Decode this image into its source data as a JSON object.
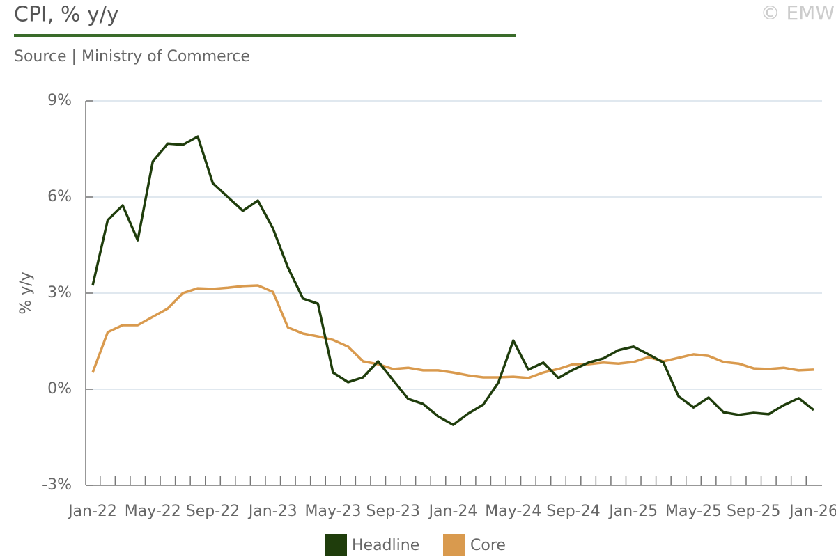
{
  "chart_data": {
    "type": "line",
    "title": "CPI, % y/y",
    "subtitle": "Source | Ministry of Commerce",
    "watermark": "© EMW",
    "ylabel": "% y/y",
    "categories": [
      "Jan-22",
      null,
      null,
      null,
      "May-22",
      null,
      null,
      null,
      "Sep-22",
      null,
      null,
      null,
      "Jan-23",
      null,
      null,
      null,
      "May-23",
      null,
      null,
      null,
      "Sep-23",
      null,
      null,
      null,
      "Jan-24",
      null,
      null,
      null,
      "May-24",
      null,
      null,
      null,
      "Sep-24",
      null,
      null,
      null,
      "Jan-25",
      null,
      null,
      null,
      "May-25",
      null,
      null,
      null,
      "Sep-25",
      null,
      null,
      null,
      "Jan-26"
    ],
    "series": [
      {
        "name": "Headline",
        "color": "#1f3d0c",
        "values": [
          3.24,
          5.28,
          5.74,
          4.65,
          7.11,
          7.67,
          7.63,
          7.89,
          6.43,
          6.0,
          5.57,
          5.89,
          5.02,
          3.8,
          2.83,
          2.67,
          0.52,
          0.22,
          0.37,
          0.87,
          0.28,
          -0.3,
          -0.46,
          -0.85,
          -1.11,
          -0.76,
          -0.48,
          0.2,
          1.52,
          0.61,
          0.83,
          0.35,
          0.61,
          0.83,
          0.96,
          1.22,
          1.33,
          1.09,
          0.83,
          -0.22,
          -0.57,
          -0.26,
          -0.72,
          -0.8,
          -0.74,
          -0.78,
          -0.5,
          -0.28,
          -0.65
        ]
      },
      {
        "name": "Core",
        "color": "#d99a4e",
        "values": [
          0.52,
          1.78,
          2.0,
          2.0,
          2.26,
          2.52,
          3.0,
          3.15,
          3.13,
          3.17,
          3.22,
          3.24,
          3.04,
          1.93,
          1.74,
          1.65,
          1.54,
          1.33,
          0.87,
          0.78,
          0.63,
          0.67,
          0.59,
          0.59,
          0.52,
          0.43,
          0.37,
          0.37,
          0.39,
          0.35,
          0.52,
          0.63,
          0.78,
          0.78,
          0.83,
          0.8,
          0.85,
          1.0,
          0.87,
          0.98,
          1.09,
          1.04,
          0.85,
          0.8,
          0.65,
          0.63,
          0.67,
          0.59,
          0.61
        ]
      }
    ],
    "ylim": [
      -3,
      9
    ],
    "yticks": [
      {
        "value": -3,
        "label": "-3%"
      },
      {
        "value": 0,
        "label": "0%"
      },
      {
        "value": 3,
        "label": "3%"
      },
      {
        "value": 6,
        "label": "6%"
      },
      {
        "value": 9,
        "label": "9%"
      }
    ],
    "grid": true,
    "legend": "bottom"
  }
}
